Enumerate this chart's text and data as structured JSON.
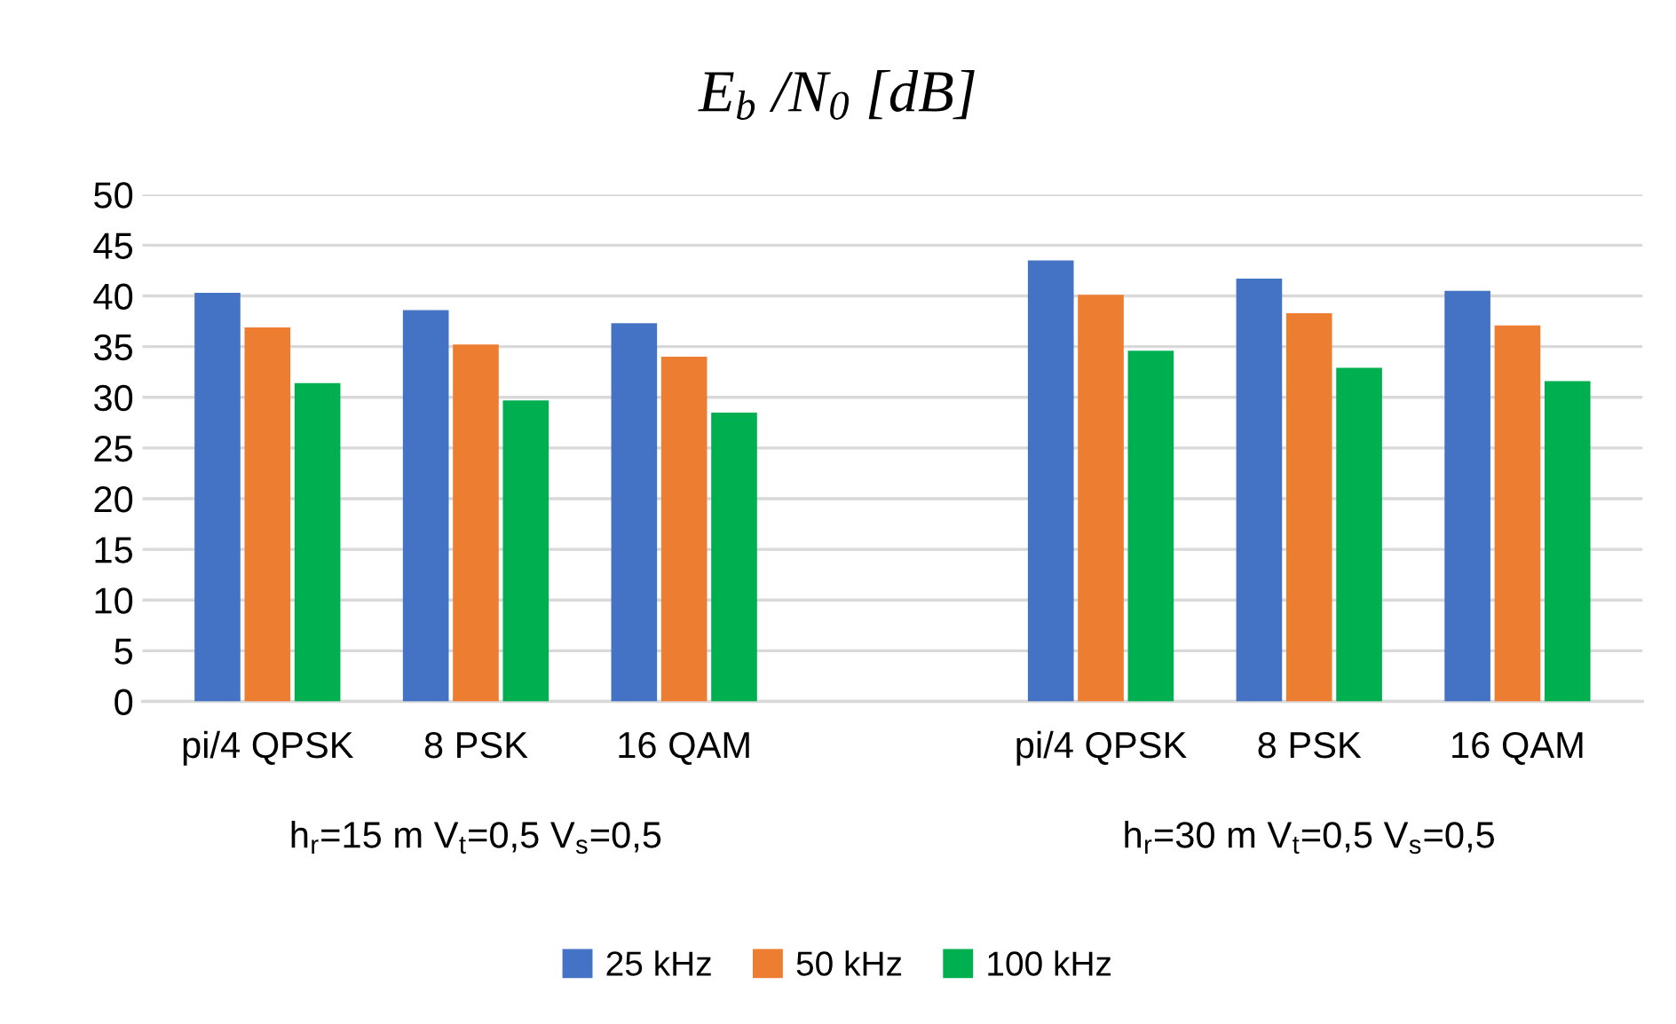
{
  "chart_data": {
    "type": "bar",
    "title": "E$_{b}$ /N$_{0}$ [dB]",
    "categories": [
      "pi/4 QPSK",
      "8 PSK",
      "16 QAM",
      null,
      "pi/4 QPSK",
      "8 PSK",
      "16 QAM"
    ],
    "series": [
      {
        "name": "25 kHz",
        "color": "#4472c4",
        "values": [
          40.3,
          38.6,
          37.3,
          null,
          43.5,
          41.7,
          40.5
        ]
      },
      {
        "name": "50 kHz",
        "color": "#ed7d31",
        "values": [
          36.9,
          35.2,
          34.0,
          null,
          40.1,
          38.3,
          37.1
        ]
      },
      {
        "name": "100 kHz",
        "color": "#00b050",
        "values": [
          31.4,
          29.7,
          28.5,
          null,
          34.6,
          32.9,
          31.6
        ]
      }
    ],
    "annotations": [
      "h$_{r}$=15 m V$_{t}$=0,5 V$_{s}$=0,5",
      "h$_{r}$=30 m V$_{t}$=0,5 V$_{s}$=0,5"
    ],
    "ylim": [
      0,
      50
    ],
    "yticks": [
      0,
      5,
      10,
      15,
      20,
      25,
      30,
      35,
      40,
      45,
      50
    ],
    "grid": "y",
    "legend": "bottom"
  }
}
